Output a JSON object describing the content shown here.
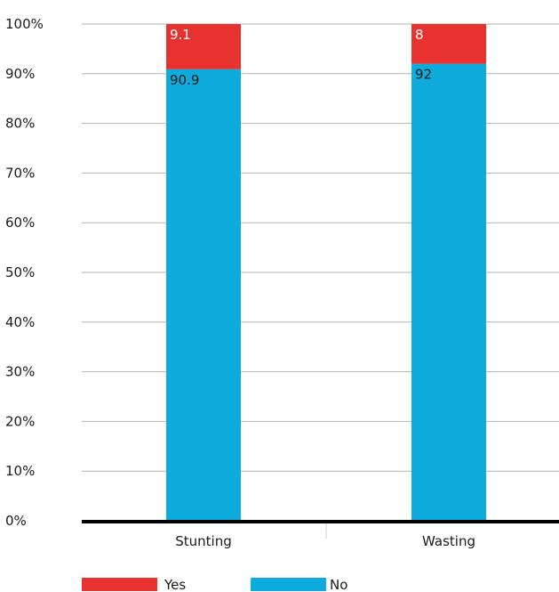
{
  "chart_data": {
    "type": "bar",
    "stacked": true,
    "percent_stacked": true,
    "categories": [
      "Stunting",
      "Wasting"
    ],
    "series": [
      {
        "name": "No",
        "values": [
          90.9,
          92
        ],
        "color": "#0eabdd",
        "labels": [
          "90.9",
          "92"
        ]
      },
      {
        "name": "Yes",
        "values": [
          9.1,
          8
        ],
        "color": "#e8322f",
        "labels": [
          "9.1",
          "8"
        ]
      }
    ],
    "y_ticks": [
      "0%",
      "10%",
      "20%",
      "30%",
      "40%",
      "50%",
      "60%",
      "70%",
      "80%",
      "90%",
      "100%"
    ],
    "ylim": [
      0,
      100
    ],
    "grid": true,
    "legend": {
      "position": "bottom-left",
      "order": [
        "Yes",
        "No"
      ]
    },
    "title": "",
    "xlabel": "",
    "ylabel": ""
  }
}
